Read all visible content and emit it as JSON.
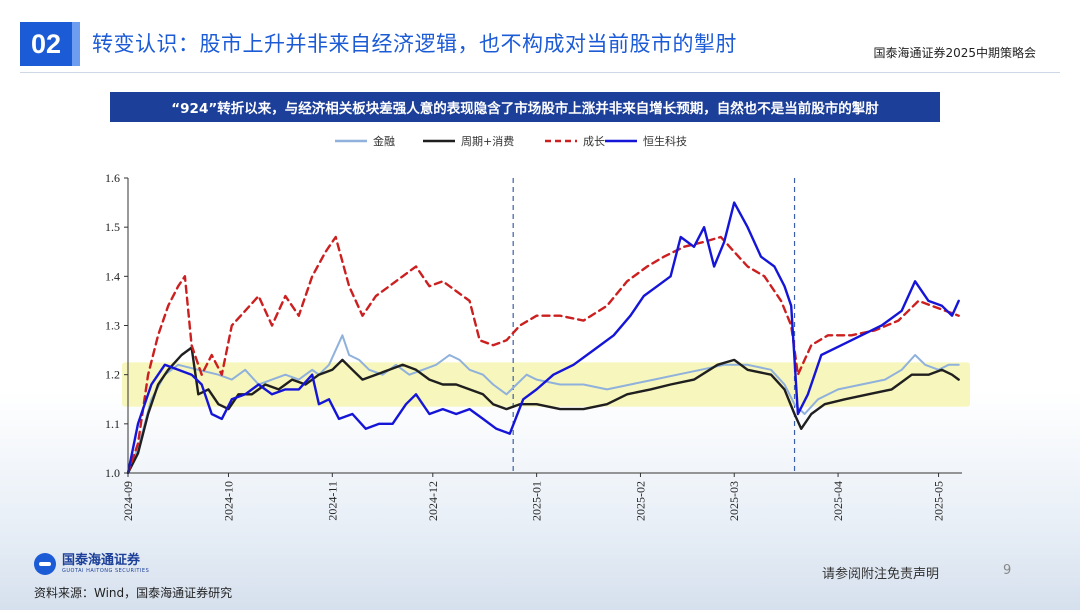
{
  "header": {
    "section_number": "02",
    "title": "转变认识：股市上升并非来自经济逻辑，也不构成对当前股市的掣肘",
    "meeting": "国泰海通证券2025中期策略会"
  },
  "banner": {
    "text": "“924”转折以来，与经济相关板块差强人意的表现隐含了市场股市上涨并非来自增长预期，自然也不是当前股市的掣肘"
  },
  "footer": {
    "logo_cn": "国泰海通证券",
    "logo_en": "GUOTAI HAITONG SECURITIES",
    "source": "资料来源：Wind，国泰海通证券研究",
    "disclaimer": "请参阅附注免责声明",
    "page": "9"
  },
  "colors": {
    "finance": "#8fb1dc",
    "cycle_consumption": "#1f1f1f",
    "growth": "#cc1f1f",
    "hstech": "#1515d8",
    "highlight_band": "#f7f5b8",
    "brand": "#1c5bd6"
  },
  "chart_data": {
    "type": "line",
    "title": "",
    "xlabel": "",
    "ylabel": "",
    "ylim": [
      1.0,
      1.6
    ],
    "yticks": [
      "1.0",
      "1.1",
      "1.2",
      "1.3",
      "1.4",
      "1.5",
      "1.6"
    ],
    "xlim": [
      "2024-09-01",
      "2025-05-08"
    ],
    "xticks": [
      {
        "label": "2024-09",
        "date": "2024-09-01"
      },
      {
        "label": "2024-10",
        "date": "2024-10-01"
      },
      {
        "label": "2024-11",
        "date": "2024-11-01"
      },
      {
        "label": "2024-12",
        "date": "2024-12-01"
      },
      {
        "label": "2025-01",
        "date": "2025-01-01"
      },
      {
        "label": "2025-02",
        "date": "2025-02-01"
      },
      {
        "label": "2025-03",
        "date": "2025-03-01"
      },
      {
        "label": "2025-04",
        "date": "2025-04-01"
      },
      {
        "label": "2025-05",
        "date": "2025-05-01"
      }
    ],
    "highlight_band": [
      1.135,
      1.225
    ],
    "vlines": [
      "2024-12-25",
      "2025-03-19"
    ],
    "legend_position": "top",
    "series": [
      {
        "name": "金融",
        "key": "finance",
        "style": "solid",
        "points": [
          [
            "2024-09-01",
            1.0
          ],
          [
            "2024-09-04",
            1.05
          ],
          [
            "2024-09-08",
            1.15
          ],
          [
            "2024-09-12",
            1.2
          ],
          [
            "2024-09-16",
            1.22
          ],
          [
            "2024-09-22",
            1.21
          ],
          [
            "2024-09-28",
            1.2
          ],
          [
            "2024-10-02",
            1.19
          ],
          [
            "2024-10-06",
            1.21
          ],
          [
            "2024-10-10",
            1.18
          ],
          [
            "2024-10-14",
            1.19
          ],
          [
            "2024-10-18",
            1.2
          ],
          [
            "2024-10-22",
            1.19
          ],
          [
            "2024-10-26",
            1.21
          ],
          [
            "2024-10-28",
            1.2
          ],
          [
            "2024-10-31",
            1.22
          ],
          [
            "2024-11-02",
            1.25
          ],
          [
            "2024-11-04",
            1.28
          ],
          [
            "2024-11-06",
            1.24
          ],
          [
            "2024-11-09",
            1.23
          ],
          [
            "2024-11-12",
            1.21
          ],
          [
            "2024-11-16",
            1.2
          ],
          [
            "2024-11-20",
            1.22
          ],
          [
            "2024-11-24",
            1.2
          ],
          [
            "2024-11-28",
            1.21
          ],
          [
            "2024-12-02",
            1.22
          ],
          [
            "2024-12-06",
            1.24
          ],
          [
            "2024-12-09",
            1.23
          ],
          [
            "2024-12-12",
            1.21
          ],
          [
            "2024-12-16",
            1.2
          ],
          [
            "2024-12-19",
            1.18
          ],
          [
            "2024-12-23",
            1.16
          ],
          [
            "2024-12-26",
            1.18
          ],
          [
            "2024-12-29",
            1.2
          ],
          [
            "2025-01-01",
            1.19
          ],
          [
            "2025-01-08",
            1.18
          ],
          [
            "2025-01-15",
            1.18
          ],
          [
            "2025-01-22",
            1.17
          ],
          [
            "2025-01-29",
            1.18
          ],
          [
            "2025-02-05",
            1.19
          ],
          [
            "2025-02-12",
            1.2
          ],
          [
            "2025-02-19",
            1.21
          ],
          [
            "2025-02-26",
            1.22
          ],
          [
            "2025-03-05",
            1.22
          ],
          [
            "2025-03-12",
            1.21
          ],
          [
            "2025-03-16",
            1.18
          ],
          [
            "2025-03-19",
            1.14
          ],
          [
            "2025-03-22",
            1.12
          ],
          [
            "2025-03-26",
            1.15
          ],
          [
            "2025-04-01",
            1.17
          ],
          [
            "2025-04-08",
            1.18
          ],
          [
            "2025-04-15",
            1.19
          ],
          [
            "2025-04-20",
            1.21
          ],
          [
            "2025-04-24",
            1.24
          ],
          [
            "2025-04-27",
            1.22
          ],
          [
            "2025-05-01",
            1.21
          ],
          [
            "2025-05-04",
            1.22
          ],
          [
            "2025-05-07",
            1.22
          ]
        ]
      },
      {
        "name": "周期+消费",
        "key": "cycle_consumption",
        "style": "solid",
        "points": [
          [
            "2024-09-01",
            1.0
          ],
          [
            "2024-09-04",
            1.04
          ],
          [
            "2024-09-07",
            1.12
          ],
          [
            "2024-09-10",
            1.18
          ],
          [
            "2024-09-13",
            1.21
          ],
          [
            "2024-09-17",
            1.24
          ],
          [
            "2024-09-20",
            1.255
          ],
          [
            "2024-09-22",
            1.16
          ],
          [
            "2024-09-25",
            1.17
          ],
          [
            "2024-09-28",
            1.14
          ],
          [
            "2024-10-01",
            1.13
          ],
          [
            "2024-10-04",
            1.16
          ],
          [
            "2024-10-08",
            1.16
          ],
          [
            "2024-10-12",
            1.18
          ],
          [
            "2024-10-16",
            1.17
          ],
          [
            "2024-10-20",
            1.19
          ],
          [
            "2024-10-24",
            1.18
          ],
          [
            "2024-10-28",
            1.2
          ],
          [
            "2024-11-01",
            1.21
          ],
          [
            "2024-11-04",
            1.23
          ],
          [
            "2024-11-07",
            1.21
          ],
          [
            "2024-11-10",
            1.19
          ],
          [
            "2024-11-14",
            1.2
          ],
          [
            "2024-11-18",
            1.21
          ],
          [
            "2024-11-22",
            1.22
          ],
          [
            "2024-11-26",
            1.21
          ],
          [
            "2024-11-30",
            1.19
          ],
          [
            "2024-12-04",
            1.18
          ],
          [
            "2024-12-08",
            1.18
          ],
          [
            "2024-12-12",
            1.17
          ],
          [
            "2024-12-16",
            1.16
          ],
          [
            "2024-12-19",
            1.14
          ],
          [
            "2024-12-23",
            1.13
          ],
          [
            "2024-12-27",
            1.14
          ],
          [
            "2025-01-01",
            1.14
          ],
          [
            "2025-01-08",
            1.13
          ],
          [
            "2025-01-15",
            1.13
          ],
          [
            "2025-01-22",
            1.14
          ],
          [
            "2025-01-28",
            1.16
          ],
          [
            "2025-02-04",
            1.17
          ],
          [
            "2025-02-10",
            1.18
          ],
          [
            "2025-02-17",
            1.19
          ],
          [
            "2025-02-24",
            1.22
          ],
          [
            "2025-03-01",
            1.23
          ],
          [
            "2025-03-05",
            1.21
          ],
          [
            "2025-03-12",
            1.2
          ],
          [
            "2025-03-16",
            1.17
          ],
          [
            "2025-03-19",
            1.12
          ],
          [
            "2025-03-21",
            1.09
          ],
          [
            "2025-03-24",
            1.12
          ],
          [
            "2025-03-28",
            1.14
          ],
          [
            "2025-04-03",
            1.15
          ],
          [
            "2025-04-10",
            1.16
          ],
          [
            "2025-04-17",
            1.17
          ],
          [
            "2025-04-23",
            1.2
          ],
          [
            "2025-04-28",
            1.2
          ],
          [
            "2025-05-02",
            1.21
          ],
          [
            "2025-05-05",
            1.2
          ],
          [
            "2025-05-07",
            1.19
          ]
        ]
      },
      {
        "name": "成长",
        "key": "growth",
        "style": "dashed",
        "points": [
          [
            "2024-09-01",
            1.0
          ],
          [
            "2024-09-04",
            1.06
          ],
          [
            "2024-09-07",
            1.2
          ],
          [
            "2024-09-10",
            1.28
          ],
          [
            "2024-09-13",
            1.34
          ],
          [
            "2024-09-16",
            1.38
          ],
          [
            "2024-09-18",
            1.4
          ],
          [
            "2024-09-20",
            1.26
          ],
          [
            "2024-09-23",
            1.2
          ],
          [
            "2024-09-26",
            1.24
          ],
          [
            "2024-09-29",
            1.2
          ],
          [
            "2024-10-02",
            1.3
          ],
          [
            "2024-10-06",
            1.33
          ],
          [
            "2024-10-10",
            1.36
          ],
          [
            "2024-10-14",
            1.3
          ],
          [
            "2024-10-18",
            1.36
          ],
          [
            "2024-10-22",
            1.32
          ],
          [
            "2024-10-26",
            1.4
          ],
          [
            "2024-10-30",
            1.45
          ],
          [
            "2024-11-02",
            1.48
          ],
          [
            "2024-11-06",
            1.38
          ],
          [
            "2024-11-10",
            1.32
          ],
          [
            "2024-11-14",
            1.36
          ],
          [
            "2024-11-18",
            1.38
          ],
          [
            "2024-11-22",
            1.4
          ],
          [
            "2024-11-26",
            1.42
          ],
          [
            "2024-11-30",
            1.38
          ],
          [
            "2024-12-04",
            1.39
          ],
          [
            "2024-12-08",
            1.37
          ],
          [
            "2024-12-12",
            1.35
          ],
          [
            "2024-12-15",
            1.27
          ],
          [
            "2024-12-19",
            1.26
          ],
          [
            "2024-12-23",
            1.27
          ],
          [
            "2024-12-27",
            1.3
          ],
          [
            "2025-01-01",
            1.32
          ],
          [
            "2025-01-08",
            1.32
          ],
          [
            "2025-01-15",
            1.31
          ],
          [
            "2025-01-22",
            1.34
          ],
          [
            "2025-01-28",
            1.39
          ],
          [
            "2025-02-03",
            1.42
          ],
          [
            "2025-02-08",
            1.44
          ],
          [
            "2025-02-14",
            1.46
          ],
          [
            "2025-02-20",
            1.47
          ],
          [
            "2025-02-25",
            1.48
          ],
          [
            "2025-03-01",
            1.45
          ],
          [
            "2025-03-05",
            1.42
          ],
          [
            "2025-03-10",
            1.4
          ],
          [
            "2025-03-15",
            1.35
          ],
          [
            "2025-03-18",
            1.3
          ],
          [
            "2025-03-20",
            1.2
          ],
          [
            "2025-03-24",
            1.26
          ],
          [
            "2025-03-29",
            1.28
          ],
          [
            "2025-04-05",
            1.28
          ],
          [
            "2025-04-12",
            1.29
          ],
          [
            "2025-04-19",
            1.31
          ],
          [
            "2025-04-25",
            1.35
          ],
          [
            "2025-04-29",
            1.34
          ],
          [
            "2025-05-03",
            1.33
          ],
          [
            "2025-05-07",
            1.32
          ]
        ]
      },
      {
        "name": "恒生科技",
        "key": "hstech",
        "style": "solid",
        "points": [
          [
            "2024-09-01",
            1.0
          ],
          [
            "2024-09-04",
            1.1
          ],
          [
            "2024-09-08",
            1.18
          ],
          [
            "2024-09-12",
            1.22
          ],
          [
            "2024-09-16",
            1.21
          ],
          [
            "2024-09-20",
            1.2
          ],
          [
            "2024-09-23",
            1.18
          ],
          [
            "2024-09-26",
            1.12
          ],
          [
            "2024-09-29",
            1.11
          ],
          [
            "2024-10-02",
            1.15
          ],
          [
            "2024-10-06",
            1.16
          ],
          [
            "2024-10-10",
            1.18
          ],
          [
            "2024-10-14",
            1.16
          ],
          [
            "2024-10-18",
            1.17
          ],
          [
            "2024-10-22",
            1.17
          ],
          [
            "2024-10-26",
            1.2
          ],
          [
            "2024-10-28",
            1.14
          ],
          [
            "2024-10-31",
            1.15
          ],
          [
            "2024-11-03",
            1.11
          ],
          [
            "2024-11-07",
            1.12
          ],
          [
            "2024-11-11",
            1.09
          ],
          [
            "2024-11-15",
            1.1
          ],
          [
            "2024-11-19",
            1.1
          ],
          [
            "2024-11-23",
            1.14
          ],
          [
            "2024-11-26",
            1.16
          ],
          [
            "2024-11-30",
            1.12
          ],
          [
            "2024-12-04",
            1.13
          ],
          [
            "2024-12-08",
            1.12
          ],
          [
            "2024-12-12",
            1.13
          ],
          [
            "2024-12-16",
            1.11
          ],
          [
            "2024-12-20",
            1.09
          ],
          [
            "2024-12-24",
            1.08
          ],
          [
            "2024-12-28",
            1.15
          ],
          [
            "2025-01-01",
            1.17
          ],
          [
            "2025-01-06",
            1.2
          ],
          [
            "2025-01-12",
            1.22
          ],
          [
            "2025-01-18",
            1.25
          ],
          [
            "2025-01-24",
            1.28
          ],
          [
            "2025-01-29",
            1.32
          ],
          [
            "2025-02-02",
            1.36
          ],
          [
            "2025-02-06",
            1.38
          ],
          [
            "2025-02-10",
            1.4
          ],
          [
            "2025-02-13",
            1.48
          ],
          [
            "2025-02-17",
            1.46
          ],
          [
            "2025-02-20",
            1.5
          ],
          [
            "2025-02-23",
            1.42
          ],
          [
            "2025-02-26",
            1.47
          ],
          [
            "2025-03-01",
            1.55
          ],
          [
            "2025-03-05",
            1.5
          ],
          [
            "2025-03-09",
            1.44
          ],
          [
            "2025-03-13",
            1.42
          ],
          [
            "2025-03-16",
            1.38
          ],
          [
            "2025-03-18",
            1.34
          ],
          [
            "2025-03-20",
            1.12
          ],
          [
            "2025-03-23",
            1.16
          ],
          [
            "2025-03-27",
            1.24
          ],
          [
            "2025-04-02",
            1.26
          ],
          [
            "2025-04-08",
            1.28
          ],
          [
            "2025-04-14",
            1.3
          ],
          [
            "2025-04-20",
            1.33
          ],
          [
            "2025-04-24",
            1.39
          ],
          [
            "2025-04-28",
            1.35
          ],
          [
            "2025-05-02",
            1.34
          ],
          [
            "2025-05-05",
            1.32
          ],
          [
            "2025-05-07",
            1.35
          ]
        ]
      }
    ]
  }
}
